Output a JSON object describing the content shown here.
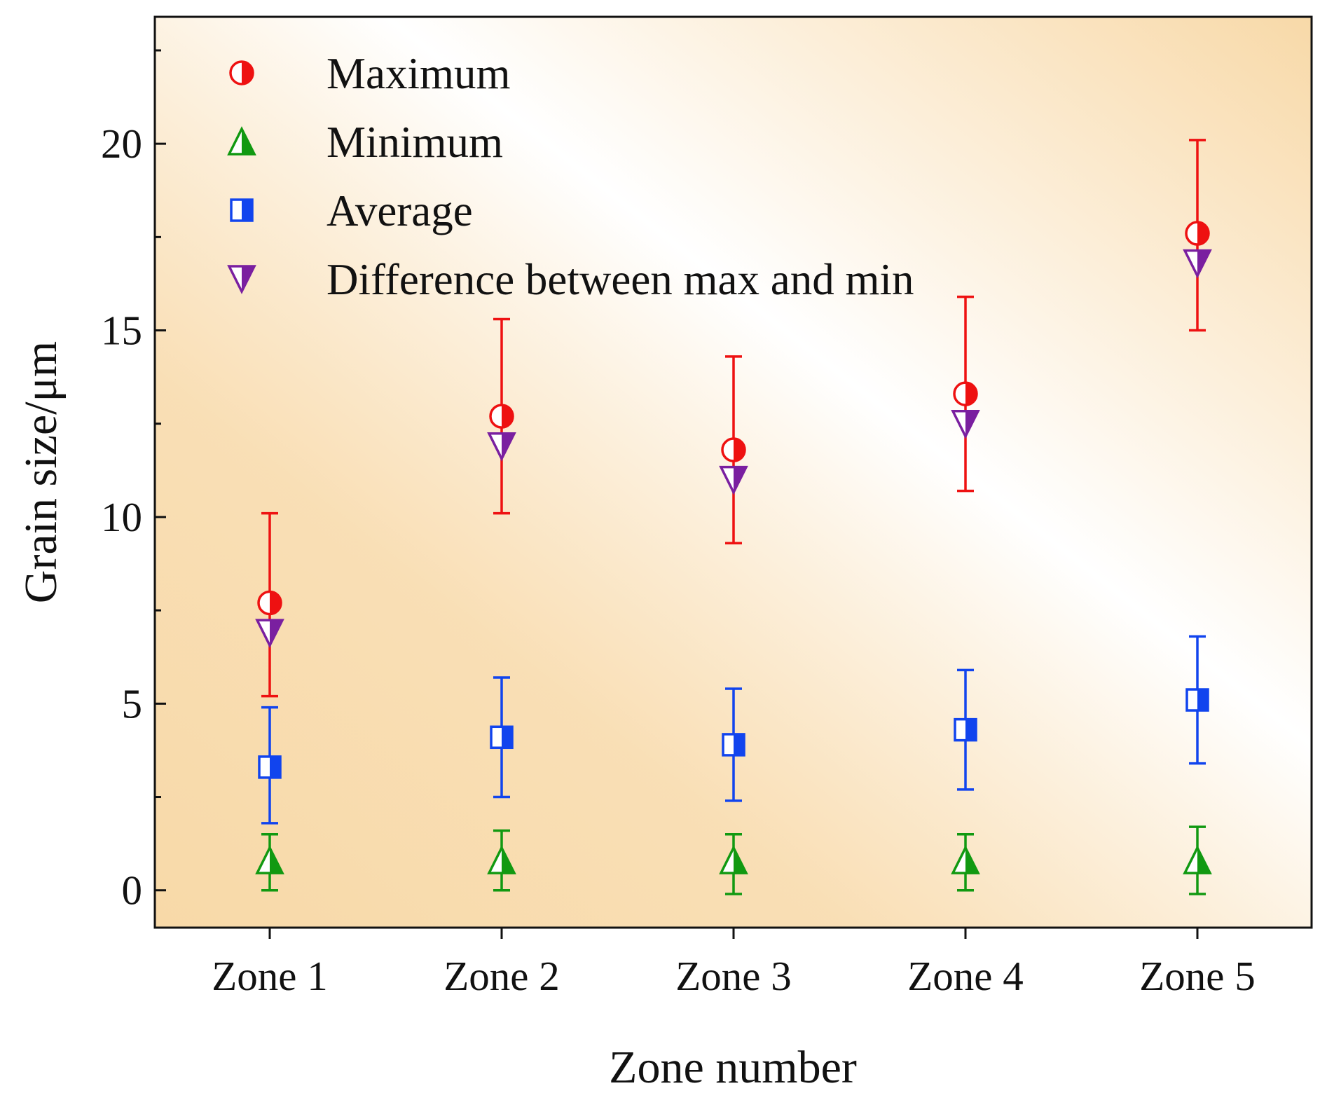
{
  "chart_data": {
    "type": "scatter",
    "title": "",
    "xlabel": "Zone number",
    "ylabel": "Grain size/μm",
    "categories": [
      "Zone 1",
      "Zone 2",
      "Zone 3",
      "Zone 4",
      "Zone 5"
    ],
    "ylim": [
      -1,
      23.4
    ],
    "yticks": [
      0,
      5,
      10,
      15,
      20
    ],
    "grid": false,
    "legend_position": "top-left",
    "background": {
      "gradient_from": "#f8d9a8",
      "gradient_to": "#ffffff"
    },
    "series": [
      {
        "name": "Maximum",
        "marker": "half-filled-circle",
        "color": "#ee1111",
        "values": [
          7.7,
          12.7,
          11.8,
          13.3,
          17.6
        ],
        "error_low": [
          5.2,
          10.1,
          9.3,
          10.7,
          15.0
        ],
        "error_high": [
          10.1,
          15.3,
          14.3,
          15.9,
          20.1
        ]
      },
      {
        "name": "Minimum",
        "marker": "half-filled-triangle-up",
        "color": "#119911",
        "values": [
          0.8,
          0.8,
          0.8,
          0.8,
          0.8
        ],
        "error_low": [
          0.0,
          0.0,
          -0.1,
          0.0,
          -0.1
        ],
        "error_high": [
          1.5,
          1.6,
          1.5,
          1.5,
          1.7
        ]
      },
      {
        "name": "Average",
        "marker": "half-filled-square",
        "color": "#1144ee",
        "values": [
          3.3,
          4.1,
          3.9,
          4.3,
          5.1
        ],
        "error_low": [
          1.8,
          2.5,
          2.4,
          2.7,
          3.4
        ],
        "error_high": [
          4.9,
          5.7,
          5.4,
          5.9,
          6.8
        ]
      },
      {
        "name": "Difference between max and min",
        "marker": "half-filled-triangle-down",
        "color": "#7a1fa0",
        "values": [
          6.9,
          11.9,
          11.0,
          12.5,
          16.8
        ]
      }
    ]
  }
}
